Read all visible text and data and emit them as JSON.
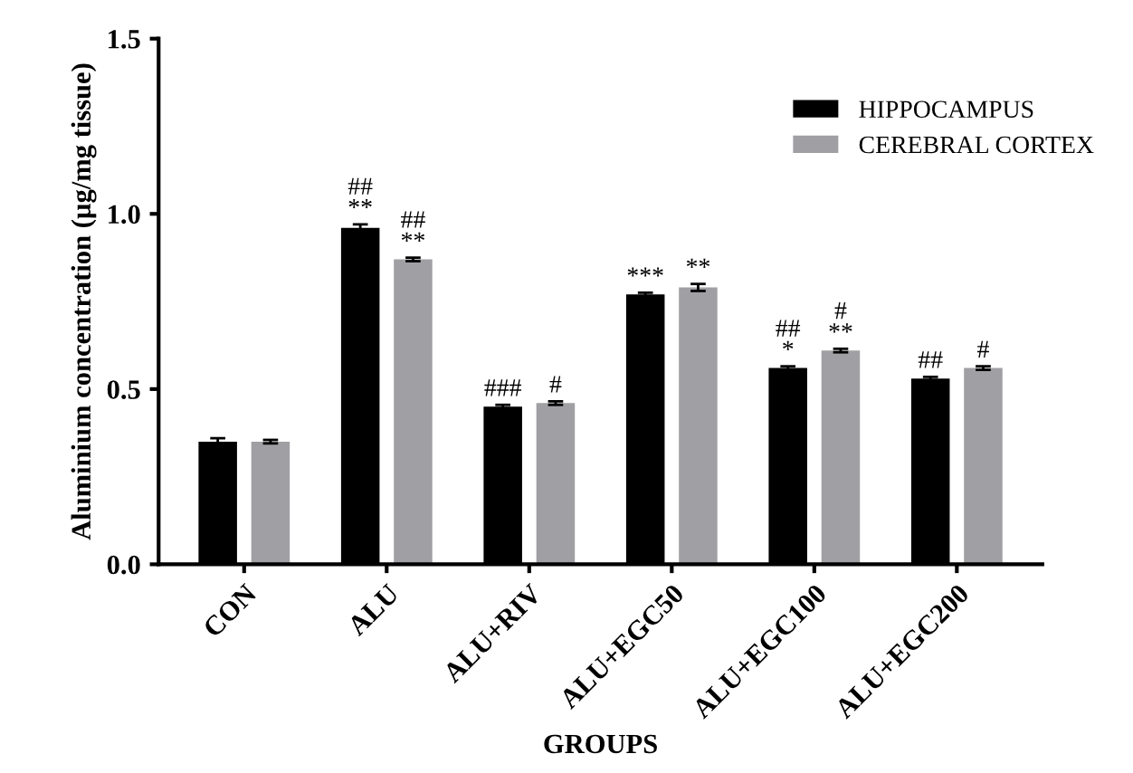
{
  "chart_data": {
    "type": "bar",
    "xlabel": "GROUPS",
    "ylabel": "Aluminium concentration (µg/mg tissue)",
    "categories": [
      "CON",
      "ALU",
      "ALU+RIV",
      "ALU+EGC50",
      "ALU+EGC100",
      "ALU+EGC200"
    ],
    "series": [
      {
        "name": "HIPPOCAMPUS",
        "color": "#000000",
        "values": [
          0.35,
          0.96,
          0.45,
          0.77,
          0.56,
          0.53
        ],
        "errors": [
          0.01,
          0.01,
          0.005,
          0.005,
          0.005,
          0.005
        ]
      },
      {
        "name": "CEREBRAL CORTEX",
        "color": "#a0a0a4",
        "values": [
          0.35,
          0.87,
          0.46,
          0.79,
          0.61,
          0.56
        ],
        "errors": [
          0.005,
          0.005,
          0.005,
          0.01,
          0.005,
          0.005
        ]
      }
    ],
    "ylim": [
      0,
      1.5
    ],
    "yticks": [
      {
        "value": 0,
        "label": "0.0"
      },
      {
        "value": 0.5,
        "label": "0.5"
      },
      {
        "value": 1.0,
        "label": "1.0"
      },
      {
        "value": 1.5,
        "label": "1.5"
      }
    ],
    "grid": false,
    "legend": "top right",
    "annotations": [
      {
        "text": "##\n**",
        "x": "ALU",
        "y": 0.96
      },
      {
        "text": "##\n**",
        "x": "ALU",
        "y": 0.87
      },
      {
        "text": "###",
        "x": "ALU+RIV",
        "y": 0.45
      },
      {
        "text": "#",
        "x": "ALU+RIV",
        "y": 0.46
      },
      {
        "text": "***",
        "x": "ALU+EGC50",
        "y": 0.77
      },
      {
        "text": "**",
        "x": "ALU+EGC50",
        "y": 0.79
      },
      {
        "text": "##\n*",
        "x": "ALU+EGC100",
        "y": 0.56
      },
      {
        "text": "#\n**",
        "x": "ALU+EGC100",
        "y": 0.61
      },
      {
        "text": "##",
        "x": "ALU+EGC200",
        "y": 0.53
      },
      {
        "text": "#",
        "x": "ALU+EGC200",
        "y": 0.56
      }
    ]
  }
}
